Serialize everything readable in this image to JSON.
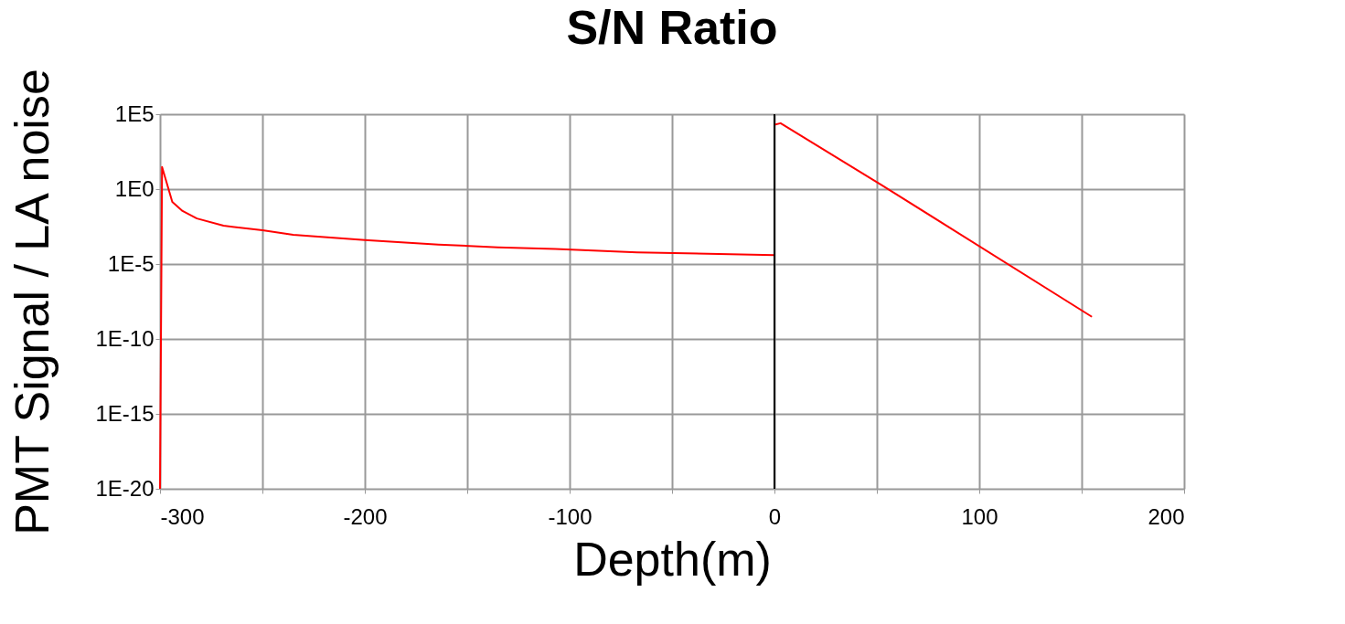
{
  "chart_data": {
    "type": "line",
    "title": "S/N Ratio",
    "xlabel": "Depth(m)",
    "ylabel": "PMT Signal / LA noise",
    "x": [
      -300,
      -299,
      -294,
      -289,
      -282,
      -269,
      -250,
      -235,
      -200,
      -164,
      -135,
      -107,
      -67,
      0,
      0,
      3,
      52,
      155
    ],
    "series": [
      {
        "color": "#ff0000",
        "values": [
          1e-20,
          30,
          0.14,
          0.035,
          0.011,
          0.0036,
          0.0018,
          0.0009,
          0.0004,
          0.0002,
          0.00013,
          0.0001,
          6e-05,
          4e-05,
          20000,
          25000,
          2,
          3e-09
        ]
      }
    ],
    "log": "y",
    "xlim": [
      -300,
      200
    ],
    "ylim": [
      1e-20,
      100000.0
    ],
    "xticks": [
      -300,
      {
        "value": -250,
        "label": null
      },
      -200,
      {
        "value": -150,
        "label": null
      },
      -100,
      {
        "value": -50,
        "label": null
      },
      0,
      {
        "value": 50,
        "label": null
      },
      100,
      {
        "value": 150,
        "label": null
      },
      200
    ],
    "yticks": [
      {
        "value": 1e-20,
        "label": "1E-20"
      },
      {
        "value": 1e-15,
        "label": "1E-15"
      },
      {
        "value": 1e-10,
        "label": "1E-10"
      },
      {
        "value": 1e-05,
        "label": "1E-5"
      },
      {
        "value": 1,
        "label": "1E0"
      },
      {
        "value": 100000,
        "label": "1E5"
      }
    ],
    "ref_lines": [
      {
        "axis": "x",
        "value": 0,
        "color": "#000000"
      }
    ],
    "grid": true,
    "marker": "none",
    "line_style": "solid"
  }
}
